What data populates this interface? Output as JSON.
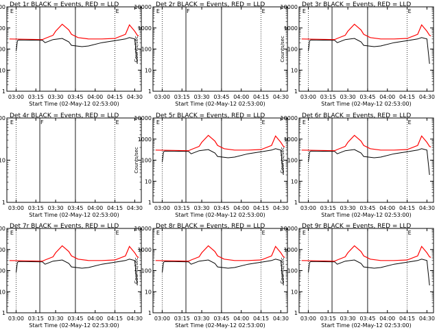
{
  "page": {
    "title_suffix": "BLACK = Events, RED = LLD",
    "x_label": "Start Time (02-May-12 02:53:00)",
    "y_label": "Counts/sec"
  },
  "colors": {
    "events": "#000000",
    "lld": "#ff0000"
  },
  "chart_data": [
    {
      "type": "line",
      "title": "Det 1r BLACK = Events, RED = LLD",
      "panel_label": "Det 1r",
      "has_data": true,
      "x_ticks": [
        "03:00",
        "03:15",
        "03:30",
        "03:45",
        "04:00",
        "04:15",
        "04:30"
      ],
      "y_ticks": [
        "1",
        "10",
        "100",
        "1000",
        "10000"
      ],
      "ylim": [
        1,
        10000
      ],
      "xlabel": "Start Time (02-May-12 02:53:00)",
      "ylabel": "Counts/sec",
      "markers": [
        {
          "time": "02:55",
          "label": "E"
        },
        {
          "time": "04:15",
          "label": "E"
        }
      ],
      "series": [
        {
          "name": "BLACK = Events",
          "color": "#000000"
        },
        {
          "name": "RED = LLD",
          "color": "#ff0000"
        }
      ]
    },
    {
      "type": "line",
      "title": "Det 2r BLACK = Events, RED = LLD",
      "panel_label": "Det 2r",
      "has_data": false,
      "x_ticks": [
        "03:00",
        "03:15",
        "03:30",
        "03:45",
        "04:00",
        "04:15",
        "04:30"
      ],
      "y_ticks": [
        "1",
        "10",
        "100",
        "1000",
        "10000"
      ],
      "ylim": [
        1,
        10000
      ],
      "xlabel": "Start Time (02-May-12 02:53:00)",
      "ylabel": "Counts/sec",
      "markers": [
        {
          "time": "02:55",
          "label": "E"
        },
        {
          "time": "03:18",
          "label": "F"
        },
        {
          "time": "04:15",
          "label": "E"
        }
      ],
      "series": []
    },
    {
      "type": "line",
      "title": "Det 3r BLACK = Events, RED = LLD",
      "panel_label": "Det 3r",
      "has_data": true,
      "x_ticks": [
        "03:00",
        "03:15",
        "03:30",
        "03:45",
        "04:00",
        "04:15",
        "04:30"
      ],
      "y_ticks": [
        "1",
        "10",
        "100",
        "1000",
        "10000"
      ],
      "ylim": [
        1,
        10000
      ],
      "xlabel": "Start Time (02-May-12 02:53:00)",
      "ylabel": "Counts/sec",
      "markers": [
        {
          "time": "02:55",
          "label": "E"
        },
        {
          "time": "04:15",
          "label": "E"
        }
      ],
      "series": [
        {
          "name": "BLACK = Events",
          "color": "#000000"
        },
        {
          "name": "RED = LLD",
          "color": "#ff0000"
        }
      ]
    },
    {
      "type": "line",
      "title": "Det 4r BLACK = Events, RED = LLD",
      "panel_label": "Det 4r",
      "has_data": false,
      "x_ticks": [
        "03:00",
        "03:15",
        "03:30",
        "03:45",
        "04:00",
        "04:15",
        "04:30"
      ],
      "y_ticks": [
        "1",
        "10",
        "100"
      ],
      "ylim": [
        1,
        100
      ],
      "xlabel": "Start Time (02-May-12 02:53:00)",
      "ylabel": "Counts/sec",
      "markers": [
        {
          "time": "02:55",
          "label": "E"
        },
        {
          "time": "03:18",
          "label": "F"
        },
        {
          "time": "04:15",
          "label": "E"
        }
      ],
      "series": []
    },
    {
      "type": "line",
      "title": "Det 5r BLACK = Events, RED = LLD",
      "panel_label": "Det 5r",
      "has_data": true,
      "x_ticks": [
        "03:00",
        "03:15",
        "03:30",
        "03:45",
        "04:00",
        "04:15",
        "04:30"
      ],
      "y_ticks": [
        "1",
        "10",
        "100",
        "1000",
        "10000"
      ],
      "ylim": [
        1,
        10000
      ],
      "xlabel": "Start Time (02-May-12 02:53:00)",
      "ylabel": "Counts/sec",
      "markers": [
        {
          "time": "02:55",
          "label": "E"
        },
        {
          "time": "04:15",
          "label": "E"
        }
      ],
      "series": [
        {
          "name": "BLACK = Events",
          "color": "#000000"
        },
        {
          "name": "RED = LLD",
          "color": "#ff0000"
        }
      ]
    },
    {
      "type": "line",
      "title": "Det 6r BLACK = Events, RED = LLD",
      "panel_label": "Det 6r",
      "has_data": true,
      "x_ticks": [
        "03:00",
        "03:15",
        "03:30",
        "03:45",
        "04:00",
        "04:15",
        "04:30"
      ],
      "y_ticks": [
        "1",
        "10",
        "100",
        "1000",
        "10000"
      ],
      "ylim": [
        1,
        10000
      ],
      "xlabel": "Start Time (02-May-12 02:53:00)",
      "ylabel": "Counts/sec",
      "markers": [
        {
          "time": "02:55",
          "label": "E"
        },
        {
          "time": "04:15",
          "label": "E"
        }
      ],
      "series": [
        {
          "name": "BLACK = Events",
          "color": "#000000"
        },
        {
          "name": "RED = LLD",
          "color": "#ff0000"
        }
      ]
    },
    {
      "type": "line",
      "title": "Det 7r BLACK = Events, RED = LLD",
      "panel_label": "Det 7r",
      "has_data": true,
      "x_ticks": [
        "03:00",
        "03:15",
        "03:30",
        "03:45",
        "04:00",
        "04:15",
        "04:30"
      ],
      "y_ticks": [
        "1",
        "10",
        "100",
        "1000",
        "10000"
      ],
      "ylim": [
        1,
        10000
      ],
      "xlabel": "Start Time (02-May-12 02:53:00)",
      "ylabel": "Counts/sec",
      "markers": [
        {
          "time": "02:55",
          "label": "E"
        },
        {
          "time": "04:15",
          "label": "E"
        }
      ],
      "series": [
        {
          "name": "BLACK = Events",
          "color": "#000000"
        },
        {
          "name": "RED = LLD",
          "color": "#ff0000"
        }
      ]
    },
    {
      "type": "line",
      "title": "Det 8r BLACK = Events, RED = LLD",
      "panel_label": "Det 8r",
      "has_data": true,
      "x_ticks": [
        "03:00",
        "03:15",
        "03:30",
        "03:45",
        "04:00",
        "04:15",
        "04:30"
      ],
      "y_ticks": [
        "1",
        "10",
        "100",
        "1000",
        "10000"
      ],
      "ylim": [
        1,
        10000
      ],
      "xlabel": "Start Time (02-May-12 02:53:00)",
      "ylabel": "Counts/sec",
      "markers": [
        {
          "time": "02:55",
          "label": "E"
        },
        {
          "time": "04:15",
          "label": "E"
        }
      ],
      "series": [
        {
          "name": "BLACK = Events",
          "color": "#000000"
        },
        {
          "name": "RED = LLD",
          "color": "#ff0000"
        }
      ]
    },
    {
      "type": "line",
      "title": "Det 9r BLACK = Events, RED = LLD",
      "panel_label": "Det 9r",
      "has_data": true,
      "x_ticks": [
        "03:00",
        "03:15",
        "03:30",
        "03:45",
        "04:00",
        "04:15",
        "04:30"
      ],
      "y_ticks": [
        "1",
        "10",
        "100",
        "1000",
        "10000"
      ],
      "ylim": [
        1,
        10000
      ],
      "xlabel": "Start Time (02-May-12 02:53:00)",
      "ylabel": "Counts/sec",
      "markers": [
        {
          "time": "02:55",
          "label": "E"
        },
        {
          "time": "04:15",
          "label": "E"
        }
      ],
      "series": [
        {
          "name": "BLACK = Events",
          "color": "#000000"
        },
        {
          "name": "RED = LLD",
          "color": "#ff0000"
        }
      ]
    }
  ],
  "lld_curve": {
    "times_min": [
      0,
      25,
      27,
      33,
      35,
      40,
      45,
      47,
      52,
      60,
      70,
      80,
      88,
      91,
      95,
      97,
      98
    ],
    "counts": [
      300,
      280,
      320,
      450,
      700,
      1500,
      800,
      500,
      350,
      300,
      300,
      320,
      500,
      1400,
      700,
      450,
      420
    ]
  },
  "events_curve": {
    "times_min": [
      5,
      6,
      7,
      25,
      27,
      33,
      40,
      45,
      47,
      55,
      60,
      70,
      80,
      88,
      91,
      95,
      97
    ],
    "counts": [
      80,
      250,
      270,
      260,
      200,
      280,
      320,
      220,
      150,
      130,
      140,
      200,
      250,
      300,
      350,
      300,
      20
    ]
  }
}
